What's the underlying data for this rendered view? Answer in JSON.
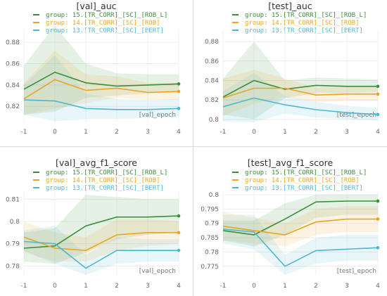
{
  "panels": [
    {
      "title": "[val]_auc",
      "xlabel": "[val]_epoch",
      "x_ticks": [
        -1,
        0,
        1,
        2,
        3,
        4
      ],
      "y_ticks": [
        "0.82",
        "0.84",
        "0.86",
        "0.88"
      ]
    },
    {
      "title": "[test]_auc",
      "xlabel": "[test]_epoch",
      "x_ticks": [
        -1,
        0,
        1,
        2,
        3,
        4
      ],
      "y_ticks": [
        "0.8",
        "0.82",
        "0.84",
        "0.86",
        "0.88"
      ]
    },
    {
      "title": "[val]_avg_f1_score",
      "xlabel": "[val]_epoch",
      "x_ticks": [
        -1,
        0,
        1,
        2,
        3,
        4
      ],
      "y_ticks": [
        "0.78",
        "0.79",
        "0.8",
        "0.81"
      ]
    },
    {
      "title": "[test]_avg_f1_score",
      "xlabel": "[test]_epoch",
      "x_ticks": [
        -1,
        0,
        1,
        2,
        3,
        4
      ],
      "y_ticks": [
        "0.775",
        "0.78",
        "0.785",
        "0.79",
        "0.795",
        "0.8"
      ]
    }
  ],
  "legend": [
    {
      "label": "group: 15.[TR_CORR]_[SC]_[ROB_L]",
      "color": "#3a8f3a"
    },
    {
      "label": "group: 14.[TR_CORR]_[SC]_[ROB]",
      "color": "#e8a521"
    },
    {
      "label": "group: 13.[TR_CORR]_[SC]_[BERT]",
      "color": "#4db8d0"
    }
  ],
  "chart_data": [
    {
      "type": "line",
      "title": "[val]_auc",
      "xlabel": "[val]_epoch",
      "ylabel": "",
      "x": [
        -1,
        0,
        1,
        2,
        3,
        4
      ],
      "xlim": [
        -1,
        4
      ],
      "ylim": [
        0.805,
        0.888
      ],
      "grid": true,
      "legend_position": "top-center",
      "series": [
        {
          "name": "group: 15.[TR_CORR]_[SC]_[ROB_L]",
          "color": "#3a8f3a",
          "values": [
            0.836,
            0.852,
            0.842,
            0.839,
            0.84,
            0.841
          ],
          "lower": [
            0.812,
            0.815,
            0.828,
            0.83,
            0.832,
            0.833
          ],
          "upper": [
            0.858,
            0.896,
            0.86,
            0.851,
            0.85,
            0.85
          ]
        },
        {
          "name": "group: 14.[TR_CORR]_[SC]_[ROB]",
          "color": "#e8a521",
          "values": [
            0.827,
            0.845,
            0.835,
            0.837,
            0.833,
            0.834
          ],
          "lower": [
            0.812,
            0.818,
            0.823,
            0.828,
            0.826,
            0.826
          ],
          "upper": [
            0.842,
            0.872,
            0.85,
            0.848,
            0.842,
            0.842
          ]
        },
        {
          "name": "group: 13.[TR_CORR]_[SC]_[BERT]",
          "color": "#4db8d0",
          "values": [
            0.826,
            0.825,
            0.818,
            0.817,
            0.817,
            0.818
          ],
          "lower": [
            0.812,
            0.806,
            0.808,
            0.808,
            0.809,
            0.81
          ],
          "upper": [
            0.84,
            0.868,
            0.832,
            0.827,
            0.826,
            0.827
          ]
        }
      ]
    },
    {
      "type": "line",
      "title": "[test]_auc",
      "xlabel": "[test]_epoch",
      "ylabel": "",
      "x": [
        -1,
        0,
        1,
        2,
        3,
        4
      ],
      "xlim": [
        -1,
        4
      ],
      "ylim": [
        0.797,
        0.888
      ],
      "grid": true,
      "legend_position": "top-center",
      "series": [
        {
          "name": "group: 15.[TR_CORR]_[SC]_[ROB_L]",
          "color": "#3a8f3a",
          "values": [
            0.823,
            0.84,
            0.831,
            0.835,
            0.834,
            0.834
          ],
          "lower": [
            0.805,
            0.8,
            0.822,
            0.827,
            0.827,
            0.828
          ],
          "upper": [
            0.842,
            0.88,
            0.84,
            0.843,
            0.842,
            0.841
          ]
        },
        {
          "name": "group: 14.[TR_CORR]_[SC]_[ROB]",
          "color": "#e8a521",
          "values": [
            0.822,
            0.832,
            0.832,
            0.825,
            0.826,
            0.826
          ],
          "lower": [
            0.803,
            0.816,
            0.823,
            0.818,
            0.819,
            0.819
          ],
          "upper": [
            0.842,
            0.851,
            0.842,
            0.833,
            0.834,
            0.834
          ]
        },
        {
          "name": "group: 13.[TR_CORR]_[SC]_[BERT]",
          "color": "#4db8d0",
          "values": [
            0.813,
            0.822,
            0.815,
            0.81,
            0.807,
            0.805
          ],
          "lower": [
            0.798,
            0.797,
            0.806,
            0.802,
            0.8,
            0.799
          ],
          "upper": [
            0.829,
            0.848,
            0.824,
            0.818,
            0.814,
            0.812
          ]
        }
      ]
    },
    {
      "type": "line",
      "title": "[val]_avg_f1_score",
      "xlabel": "[val]_epoch",
      "ylabel": "",
      "x": [
        -1,
        0,
        1,
        2,
        3,
        4
      ],
      "xlim": [
        -1,
        4
      ],
      "ylim": [
        0.776,
        0.812
      ],
      "grid": true,
      "legend_position": "top-center",
      "series": [
        {
          "name": "group: 15.[TR_CORR]_[SC]_[ROB_L]",
          "color": "#3a8f3a",
          "values": [
            0.788,
            0.789,
            0.798,
            0.802,
            0.802,
            0.8025
          ],
          "lower": [
            0.782,
            0.781,
            0.786,
            0.792,
            0.794,
            0.795
          ],
          "upper": [
            0.795,
            0.797,
            0.812,
            0.811,
            0.81,
            0.81
          ]
        },
        {
          "name": "group: 14.[TR_CORR]_[SC]_[ROB]",
          "color": "#e8a521",
          "values": [
            0.793,
            0.788,
            0.787,
            0.794,
            0.795,
            0.795
          ],
          "lower": [
            0.786,
            0.782,
            0.782,
            0.787,
            0.789,
            0.79
          ],
          "upper": [
            0.8,
            0.795,
            0.793,
            0.801,
            0.801,
            0.8
          ]
        },
        {
          "name": "group: 13.[TR_CORR]_[SC]_[BERT]",
          "color": "#4db8d0",
          "values": [
            0.791,
            0.79,
            0.779,
            0.787,
            0.787,
            0.787
          ],
          "lower": [
            0.787,
            0.781,
            0.776,
            0.781,
            0.782,
            0.782
          ],
          "upper": [
            0.796,
            0.798,
            0.785,
            0.793,
            0.792,
            0.792
          ]
        }
      ]
    },
    {
      "type": "line",
      "title": "[test]_avg_f1_score",
      "xlabel": "[test]_epoch",
      "ylabel": "",
      "x": [
        -1,
        0,
        1,
        2,
        3,
        4
      ],
      "xlim": [
        -1,
        4
      ],
      "ylim": [
        0.772,
        0.8
      ],
      "grid": true,
      "legend_position": "top-center",
      "series": [
        {
          "name": "group: 15.[TR_CORR]_[SC]_[ROB_L]",
          "color": "#3a8f3a",
          "values": [
            0.7875,
            0.786,
            0.7915,
            0.7975,
            0.7978,
            0.7978
          ],
          "lower": [
            0.784,
            0.782,
            0.786,
            0.792,
            0.793,
            0.793
          ],
          "upper": [
            0.791,
            0.791,
            0.797,
            0.8,
            0.8,
            0.8
          ]
        },
        {
          "name": "group: 14.[TR_CORR]_[SC]_[ROB]",
          "color": "#e8a521",
          "values": [
            0.789,
            0.7875,
            0.786,
            0.7905,
            0.7915,
            0.7915
          ],
          "lower": [
            0.784,
            0.783,
            0.782,
            0.786,
            0.787,
            0.787
          ],
          "upper": [
            0.794,
            0.792,
            0.79,
            0.795,
            0.796,
            0.796
          ]
        },
        {
          "name": "group: 13.[TR_CORR]_[SC]_[BERT]",
          "color": "#4db8d0",
          "values": [
            0.788,
            0.787,
            0.775,
            0.7805,
            0.781,
            0.7815
          ],
          "lower": [
            0.783,
            0.781,
            0.772,
            0.776,
            0.777,
            0.777
          ],
          "upper": [
            0.793,
            0.793,
            0.779,
            0.785,
            0.786,
            0.786
          ]
        }
      ]
    }
  ]
}
